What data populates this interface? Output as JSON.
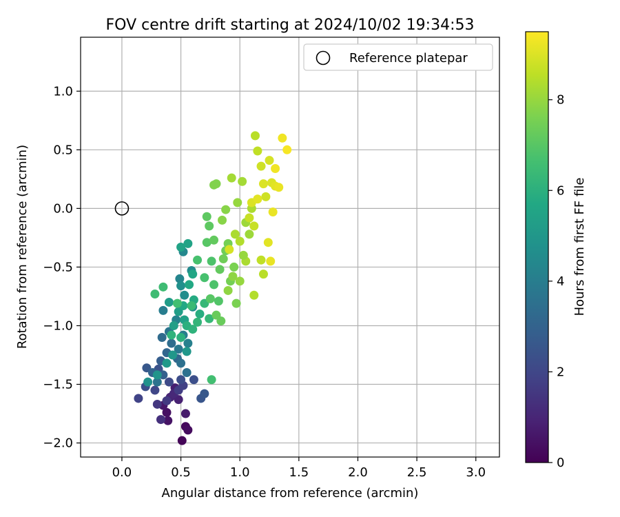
{
  "chart_data": {
    "type": "scatter",
    "title": "FOV centre drift starting at 2024/10/02 19:34:53",
    "xlabel": "Angular distance from reference (arcmin)",
    "ylabel": "Rotation from reference (arcmin)",
    "xlim": [
      -0.35,
      3.2
    ],
    "ylim": [
      -2.12,
      1.46
    ],
    "xticks": [
      "0.0",
      "0.5",
      "1.0",
      "1.5",
      "2.0",
      "2.5",
      "3.0"
    ],
    "yticks": [
      "−2.0",
      "−1.5",
      "−1.0",
      "−0.5",
      "0.0",
      "0.5",
      "1.0"
    ],
    "xtick_values": [
      0,
      0.5,
      1.0,
      1.5,
      2.0,
      2.5,
      3.0
    ],
    "ytick_values": [
      -2.0,
      -1.5,
      -1.0,
      -0.5,
      0.0,
      0.5,
      1.0
    ],
    "grid": true,
    "legend_position": "top-right",
    "legend_entries": [
      "Reference platepar"
    ],
    "reference_point": {
      "x": 0.0,
      "y": 0.0
    },
    "colorbar": {
      "label": "Hours from first FF file",
      "colormap": "viridis",
      "range": [
        0,
        9.5
      ],
      "ticks": [
        "0",
        "2",
        "4",
        "6",
        "8"
      ],
      "tick_values": [
        0,
        2,
        4,
        6,
        8
      ]
    },
    "points": [
      [
        0.51,
        -1.98,
        0.1
      ],
      [
        0.54,
        -1.86,
        0.2
      ],
      [
        0.56,
        -1.89,
        0.3
      ],
      [
        0.38,
        -1.74,
        0.4
      ],
      [
        0.39,
        -1.81,
        0.5
      ],
      [
        0.35,
        -1.68,
        0.6
      ],
      [
        0.54,
        -1.75,
        0.7
      ],
      [
        0.45,
        -1.53,
        0.8
      ],
      [
        0.48,
        -1.63,
        0.9
      ],
      [
        0.41,
        -1.61,
        1.0
      ],
      [
        0.44,
        -1.58,
        1.1
      ],
      [
        0.33,
        -1.8,
        1.3
      ],
      [
        0.3,
        -1.67,
        1.5
      ],
      [
        0.38,
        -1.64,
        1.6
      ],
      [
        0.48,
        -1.55,
        1.7
      ],
      [
        0.52,
        -1.51,
        1.8
      ],
      [
        0.14,
        -1.62,
        1.9
      ],
      [
        0.28,
        -1.55,
        2.0
      ],
      [
        0.4,
        -1.48,
        2.1
      ],
      [
        0.5,
        -1.46,
        2.2
      ],
      [
        0.61,
        -1.46,
        2.3
      ],
      [
        0.67,
        -1.62,
        2.5
      ],
      [
        0.7,
        -1.58,
        2.6
      ],
      [
        0.2,
        -1.52,
        2.3
      ],
      [
        0.31,
        -1.37,
        2.4
      ],
      [
        0.21,
        -1.36,
        2.6
      ],
      [
        0.33,
        -1.3,
        2.8
      ],
      [
        0.35,
        -1.42,
        2.9
      ],
      [
        0.26,
        -1.4,
        3.0
      ],
      [
        0.38,
        -1.23,
        3.1
      ],
      [
        0.47,
        -1.28,
        3.2
      ],
      [
        0.34,
        -1.1,
        3.3
      ],
      [
        0.42,
        -1.15,
        3.4
      ],
      [
        0.5,
        -1.32,
        3.5
      ],
      [
        0.55,
        -1.4,
        3.5
      ],
      [
        0.3,
        -1.48,
        3.6
      ],
      [
        0.4,
        -1.05,
        3.7
      ],
      [
        0.48,
        -1.2,
        3.8
      ],
      [
        0.52,
        -1.08,
        4.0
      ],
      [
        0.35,
        -0.87,
        4.0
      ],
      [
        0.56,
        -1.15,
        4.1
      ],
      [
        0.46,
        -0.95,
        4.2
      ],
      [
        0.49,
        -0.6,
        4.3
      ],
      [
        0.52,
        -0.37,
        4.4
      ],
      [
        0.59,
        -0.53,
        4.5
      ],
      [
        0.53,
        -0.74,
        4.6
      ],
      [
        0.6,
        -0.84,
        4.6
      ],
      [
        0.5,
        -0.66,
        4.7
      ],
      [
        0.22,
        -1.48,
        4.8
      ],
      [
        0.3,
        -1.42,
        4.9
      ],
      [
        0.43,
        -1.25,
        5.0
      ],
      [
        0.55,
        -1.22,
        5.0
      ],
      [
        0.38,
        -1.32,
        5.1
      ],
      [
        0.4,
        -0.8,
        5.2
      ],
      [
        0.44,
        -1.0,
        5.3
      ],
      [
        0.48,
        -0.88,
        5.3
      ],
      [
        0.53,
        -0.95,
        5.4
      ],
      [
        0.56,
        -0.3,
        5.5
      ],
      [
        0.5,
        -0.33,
        5.5
      ],
      [
        0.6,
        -0.56,
        5.6
      ],
      [
        0.57,
        -0.65,
        5.7
      ],
      [
        0.52,
        -0.83,
        5.7
      ],
      [
        0.61,
        -0.78,
        5.8
      ],
      [
        0.66,
        -0.9,
        5.9
      ],
      [
        0.55,
        -1.0,
        6.0
      ],
      [
        0.5,
        -1.1,
        6.0
      ],
      [
        0.42,
        -1.08,
        6.1
      ],
      [
        0.6,
        -1.03,
        6.1
      ],
      [
        0.64,
        -0.97,
        6.2
      ],
      [
        0.7,
        -0.81,
        6.3
      ],
      [
        0.74,
        -0.94,
        6.3
      ],
      [
        0.59,
        -0.83,
        6.4
      ],
      [
        0.35,
        -0.67,
        6.5
      ],
      [
        0.28,
        -0.73,
        6.5
      ],
      [
        0.47,
        -0.81,
        6.6
      ],
      [
        0.64,
        -0.44,
        6.7
      ],
      [
        0.7,
        -0.59,
        6.7
      ],
      [
        0.76,
        -0.45,
        6.8
      ],
      [
        0.78,
        -0.65,
        6.8
      ],
      [
        0.82,
        -0.79,
        6.9
      ],
      [
        0.76,
        -1.46,
        6.6
      ],
      [
        0.75,
        -0.77,
        7.0
      ],
      [
        0.72,
        -0.29,
        7.0
      ],
      [
        0.72,
        -0.07,
        7.1
      ],
      [
        0.74,
        -0.15,
        7.1
      ],
      [
        0.78,
        -0.27,
        7.2
      ],
      [
        0.83,
        -0.52,
        7.2
      ],
      [
        0.8,
        -0.91,
        7.3
      ],
      [
        0.84,
        -0.96,
        7.3
      ],
      [
        0.86,
        -0.43,
        7.4
      ],
      [
        0.88,
        -0.36,
        7.4
      ],
      [
        0.9,
        -0.3,
        7.5
      ],
      [
        0.92,
        -0.62,
        7.5
      ],
      [
        0.95,
        -0.5,
        7.6
      ],
      [
        0.97,
        -0.81,
        7.6
      ],
      [
        0.78,
        0.2,
        7.7
      ],
      [
        0.8,
        0.21,
        7.7
      ],
      [
        0.85,
        -0.1,
        7.8
      ],
      [
        0.88,
        -0.01,
        7.8
      ],
      [
        0.9,
        -0.7,
        7.9
      ],
      [
        0.94,
        -0.58,
        7.9
      ],
      [
        1.0,
        -0.62,
        8.0
      ],
      [
        0.98,
        0.05,
        8.0
      ],
      [
        1.05,
        -0.12,
        8.1
      ],
      [
        1.08,
        -0.22,
        8.1
      ],
      [
        0.93,
        0.26,
        8.2
      ],
      [
        1.02,
        0.23,
        8.2
      ],
      [
        1.1,
        0.0,
        8.3
      ],
      [
        1.05,
        -0.45,
        8.3
      ],
      [
        1.0,
        -0.28,
        8.4
      ],
      [
        1.12,
        -0.74,
        8.4
      ],
      [
        1.13,
        0.62,
        8.5
      ],
      [
        1.2,
        -0.56,
        8.5
      ],
      [
        1.18,
        -0.44,
        8.6
      ],
      [
        1.15,
        0.49,
        8.6
      ],
      [
        1.08,
        -0.08,
        8.7
      ],
      [
        1.12,
        -0.15,
        8.7
      ],
      [
        1.18,
        0.36,
        8.8
      ],
      [
        1.22,
        0.1,
        8.8
      ],
      [
        1.25,
        0.41,
        8.9
      ],
      [
        1.27,
        0.22,
        9.0
      ],
      [
        1.2,
        0.21,
        9.0
      ],
      [
        1.3,
        0.19,
        9.1
      ],
      [
        1.24,
        -0.29,
        9.1
      ],
      [
        1.28,
        -0.03,
        9.2
      ],
      [
        1.33,
        0.18,
        9.2
      ],
      [
        1.36,
        0.6,
        9.3
      ],
      [
        1.4,
        0.5,
        9.4
      ],
      [
        1.3,
        0.34,
        9.3
      ],
      [
        1.26,
        -0.45,
        9.2
      ],
      [
        0.96,
        -0.22,
        8.3
      ],
      [
        0.91,
        -0.35,
        8.9
      ],
      [
        1.03,
        -0.4,
        8.0
      ],
      [
        1.1,
        0.05,
        9.0
      ],
      [
        1.15,
        0.08,
        9.1
      ]
    ]
  }
}
